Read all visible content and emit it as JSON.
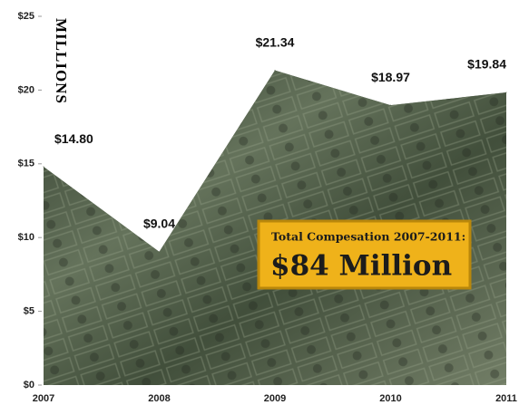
{
  "chart_data": {
    "type": "area",
    "y_axis_label": "MILLIONS",
    "categories": [
      "2007",
      "2008",
      "2009",
      "2010",
      "2011"
    ],
    "values": [
      14.8,
      9.04,
      21.34,
      18.97,
      19.84
    ],
    "value_labels": [
      "$14.80",
      "$9.04",
      "$21.34",
      "$18.97",
      "$19.84"
    ],
    "color": "#4c5a44",
    "ylim": [
      0,
      25
    ],
    "yticks": [
      {
        "value": 0,
        "label": "$0"
      },
      {
        "value": 5,
        "label": "$5"
      },
      {
        "value": 10,
        "label": "$10"
      },
      {
        "value": 15,
        "label": "$15"
      },
      {
        "value": 20,
        "label": "$20"
      },
      {
        "value": 25,
        "label": "$25"
      }
    ],
    "annotation": {
      "title": "Total Compesation 2007-2011:",
      "text": "$84 Million"
    }
  }
}
